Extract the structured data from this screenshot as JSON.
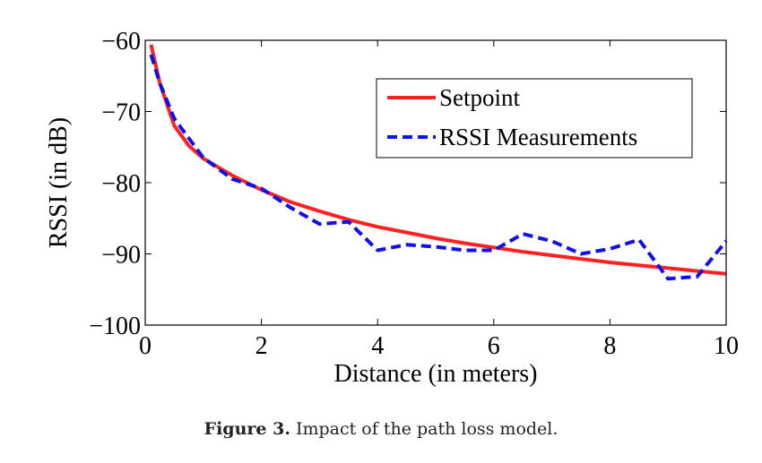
{
  "chart_data": {
    "type": "line",
    "xlabel": "Distance (in meters)",
    "ylabel": "RSSI (in dB)",
    "xlim": [
      0,
      10
    ],
    "ylim": [
      -100,
      -60
    ],
    "xticks": [
      0,
      2,
      4,
      6,
      8,
      10
    ],
    "yticks": [
      -100,
      -90,
      -80,
      -70,
      -60
    ],
    "xtick_labels": [
      "0",
      "2",
      "4",
      "6",
      "8",
      "10"
    ],
    "ytick_labels": [
      "−100",
      "−90",
      "−80",
      "−70",
      "−60"
    ],
    "grid": false,
    "legend_position": "top-right",
    "series": [
      {
        "name": "Setpoint",
        "color": "#ff2020",
        "style": "solid",
        "x": [
          0.1,
          0.25,
          0.5,
          0.75,
          1,
          1.5,
          2,
          2.5,
          3,
          3.5,
          4,
          4.5,
          5,
          5.5,
          6,
          6.5,
          7,
          7.5,
          8,
          8.5,
          9,
          9.5,
          10
        ],
        "y": [
          -60.6,
          -66.0,
          -72.0,
          -74.8,
          -76.6,
          -79.0,
          -81.0,
          -82.7,
          -84.0,
          -85.2,
          -86.2,
          -87.0,
          -87.8,
          -88.5,
          -89.1,
          -89.7,
          -90.2,
          -90.7,
          -91.2,
          -91.6,
          -92.0,
          -92.4,
          -92.8
        ]
      },
      {
        "name": "RSSI Measurements",
        "color": "#1010ee",
        "style": "dashed",
        "x": [
          0.1,
          0.25,
          0.5,
          1,
          1.5,
          2,
          2.5,
          3,
          3.5,
          4,
          4.5,
          5,
          5.5,
          6,
          6.5,
          7,
          7.5,
          8,
          8.5,
          9,
          9.5,
          10
        ],
        "y": [
          -62.0,
          -66.0,
          -71.0,
          -76.5,
          -79.5,
          -80.8,
          -83.5,
          -85.8,
          -85.5,
          -89.5,
          -88.7,
          -89.0,
          -89.5,
          -89.5,
          -87.2,
          -88.2,
          -90.0,
          -89.3,
          -88.0,
          -93.5,
          -93.2,
          -88.2
        ]
      }
    ]
  },
  "caption": {
    "label": "Figure 3.",
    "text": " Impact of the path loss model."
  }
}
